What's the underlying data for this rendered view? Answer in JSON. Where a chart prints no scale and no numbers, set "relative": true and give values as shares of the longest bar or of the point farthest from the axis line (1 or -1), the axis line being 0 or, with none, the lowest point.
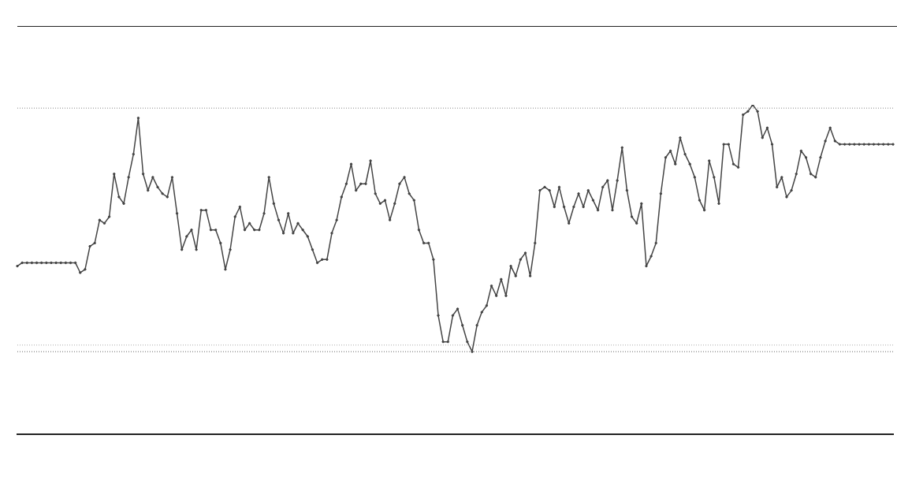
{
  "chart_data": {
    "type": "line",
    "relative": true,
    "marker": "circle",
    "color": "#444444",
    "categories": [
      null,
      null,
      null,
      null,
      null,
      null,
      null,
      null,
      null,
      null,
      null,
      null,
      null,
      null,
      null,
      null,
      null,
      null,
      null,
      null,
      null,
      null,
      null,
      null,
      null,
      null,
      null,
      null,
      null,
      null,
      null,
      null,
      null,
      null,
      null,
      null,
      null,
      null,
      null,
      null,
      null,
      null,
      null,
      null,
      null,
      null,
      null,
      null,
      null,
      null,
      null,
      null,
      null,
      null,
      null,
      null,
      null,
      null,
      null,
      null,
      null,
      null,
      null,
      null,
      null,
      null,
      null,
      null,
      null,
      null,
      null,
      null,
      null,
      null,
      null,
      null,
      null,
      null,
      null,
      null,
      null,
      null,
      null,
      null,
      null,
      null,
      null,
      null,
      null,
      null,
      null,
      null,
      null,
      null,
      null,
      null,
      null,
      null,
      null,
      null,
      null,
      null,
      null,
      null,
      null,
      null,
      null,
      null,
      null,
      null,
      null,
      null,
      null,
      null,
      null,
      null,
      null,
      null,
      null,
      null,
      null,
      null,
      null,
      null,
      null,
      null,
      null,
      null,
      null,
      null,
      null,
      null,
      null,
      null,
      null,
      null,
      null,
      null,
      null,
      null,
      null,
      null,
      null,
      null,
      null,
      null,
      null,
      null,
      null,
      null,
      null,
      null,
      null,
      null,
      null,
      null,
      null,
      null,
      null,
      null,
      null,
      null,
      null,
      null,
      null,
      null,
      null,
      null,
      null,
      null,
      null,
      null,
      null,
      null,
      null,
      null,
      null,
      null,
      null,
      null,
      null,
      null
    ],
    "values": [
      0.51,
      0.52,
      0.52,
      0.52,
      0.52,
      0.52,
      0.52,
      0.52,
      0.52,
      0.52,
      0.52,
      0.52,
      0.52,
      0.49,
      0.5,
      0.57,
      0.58,
      0.65,
      0.64,
      0.66,
      0.79,
      0.72,
      0.7,
      0.78,
      0.85,
      0.96,
      0.79,
      0.74,
      0.78,
      0.75,
      0.73,
      0.72,
      0.78,
      0.67,
      0.56,
      0.6,
      0.62,
      0.56,
      0.68,
      0.68,
      0.62,
      0.62,
      0.58,
      0.5,
      0.56,
      0.66,
      0.69,
      0.62,
      0.64,
      0.62,
      0.62,
      0.67,
      0.78,
      0.7,
      0.65,
      0.61,
      0.67,
      0.61,
      0.64,
      0.62,
      0.6,
      0.56,
      0.52,
      0.53,
      0.53,
      0.61,
      0.65,
      0.72,
      0.76,
      0.82,
      0.74,
      0.76,
      0.76,
      0.83,
      0.73,
      0.7,
      0.71,
      0.65,
      0.7,
      0.76,
      0.78,
      0.73,
      0.71,
      0.62,
      0.58,
      0.58,
      0.53,
      0.36,
      0.28,
      0.28,
      0.36,
      0.38,
      0.33,
      0.28,
      0.25,
      0.33,
      0.37,
      0.39,
      0.45,
      0.42,
      0.47,
      0.42,
      0.51,
      0.48,
      0.53,
      0.55,
      0.48,
      0.58,
      0.74,
      0.75,
      0.74,
      0.69,
      0.75,
      0.69,
      0.64,
      0.69,
      0.73,
      0.69,
      0.74,
      0.71,
      0.68,
      0.75,
      0.77,
      0.68,
      0.77,
      0.87,
      0.74,
      0.66,
      0.64,
      0.7,
      0.51,
      0.54,
      0.58,
      0.73,
      0.84,
      0.86,
      0.82,
      0.9,
      0.85,
      0.82,
      0.78,
      0.71,
      0.68,
      0.83,
      0.78,
      0.7,
      0.88,
      0.88,
      0.82,
      0.81,
      0.97,
      0.98,
      1.0,
      0.98,
      0.9,
      0.93,
      0.88,
      0.75,
      0.78,
      0.72,
      0.74,
      0.79,
      0.86,
      0.84,
      0.79,
      0.78,
      0.84,
      0.89,
      0.93,
      0.89,
      0.88,
      0.88,
      0.88,
      0.88,
      0.88,
      0.88,
      0.88,
      0.88,
      0.88,
      0.88,
      0.88,
      0.88
    ],
    "ref_lines": [
      {
        "axis": "y",
        "value": 0.99,
        "line_style": "dotted",
        "color": "#888888"
      },
      {
        "axis": "y",
        "value": 0.27,
        "line_style": "dotted",
        "color": "#aaaaaa"
      },
      {
        "axis": "y",
        "value": 0.25,
        "line_style": "dotted",
        "color": "#666666"
      }
    ]
  }
}
